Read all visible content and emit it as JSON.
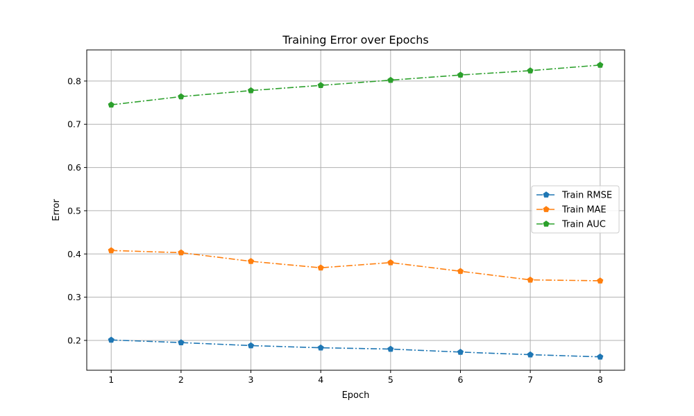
{
  "chart_data": {
    "type": "line",
    "title": "Training Error over Epochs",
    "xlabel": "Epoch",
    "ylabel": "Error",
    "x": [
      1,
      2,
      3,
      4,
      5,
      6,
      7,
      8
    ],
    "xticks": [
      "1",
      "2",
      "3",
      "4",
      "5",
      "6",
      "7",
      "8"
    ],
    "xlim": [
      0.65,
      8.35
    ],
    "yticks": [
      "0.2",
      "0.3",
      "0.4",
      "0.5",
      "0.6",
      "0.7",
      "0.8"
    ],
    "ylim": [
      0.131,
      0.872
    ],
    "grid": true,
    "legend_position": "center-right",
    "line_style": "dash-dot",
    "marker": "pentagon",
    "series": [
      {
        "name": "Train RMSE",
        "color": "#1f77b4",
        "values": [
          0.201,
          0.195,
          0.188,
          0.183,
          0.18,
          0.173,
          0.167,
          0.162
        ]
      },
      {
        "name": "Train MAE",
        "color": "#ff7f0e",
        "values": [
          0.408,
          0.403,
          0.383,
          0.368,
          0.38,
          0.36,
          0.34,
          0.338
        ]
      },
      {
        "name": "Train AUC",
        "color": "#2ca02c",
        "values": [
          0.745,
          0.764,
          0.778,
          0.79,
          0.802,
          0.814,
          0.824,
          0.837
        ]
      }
    ]
  }
}
